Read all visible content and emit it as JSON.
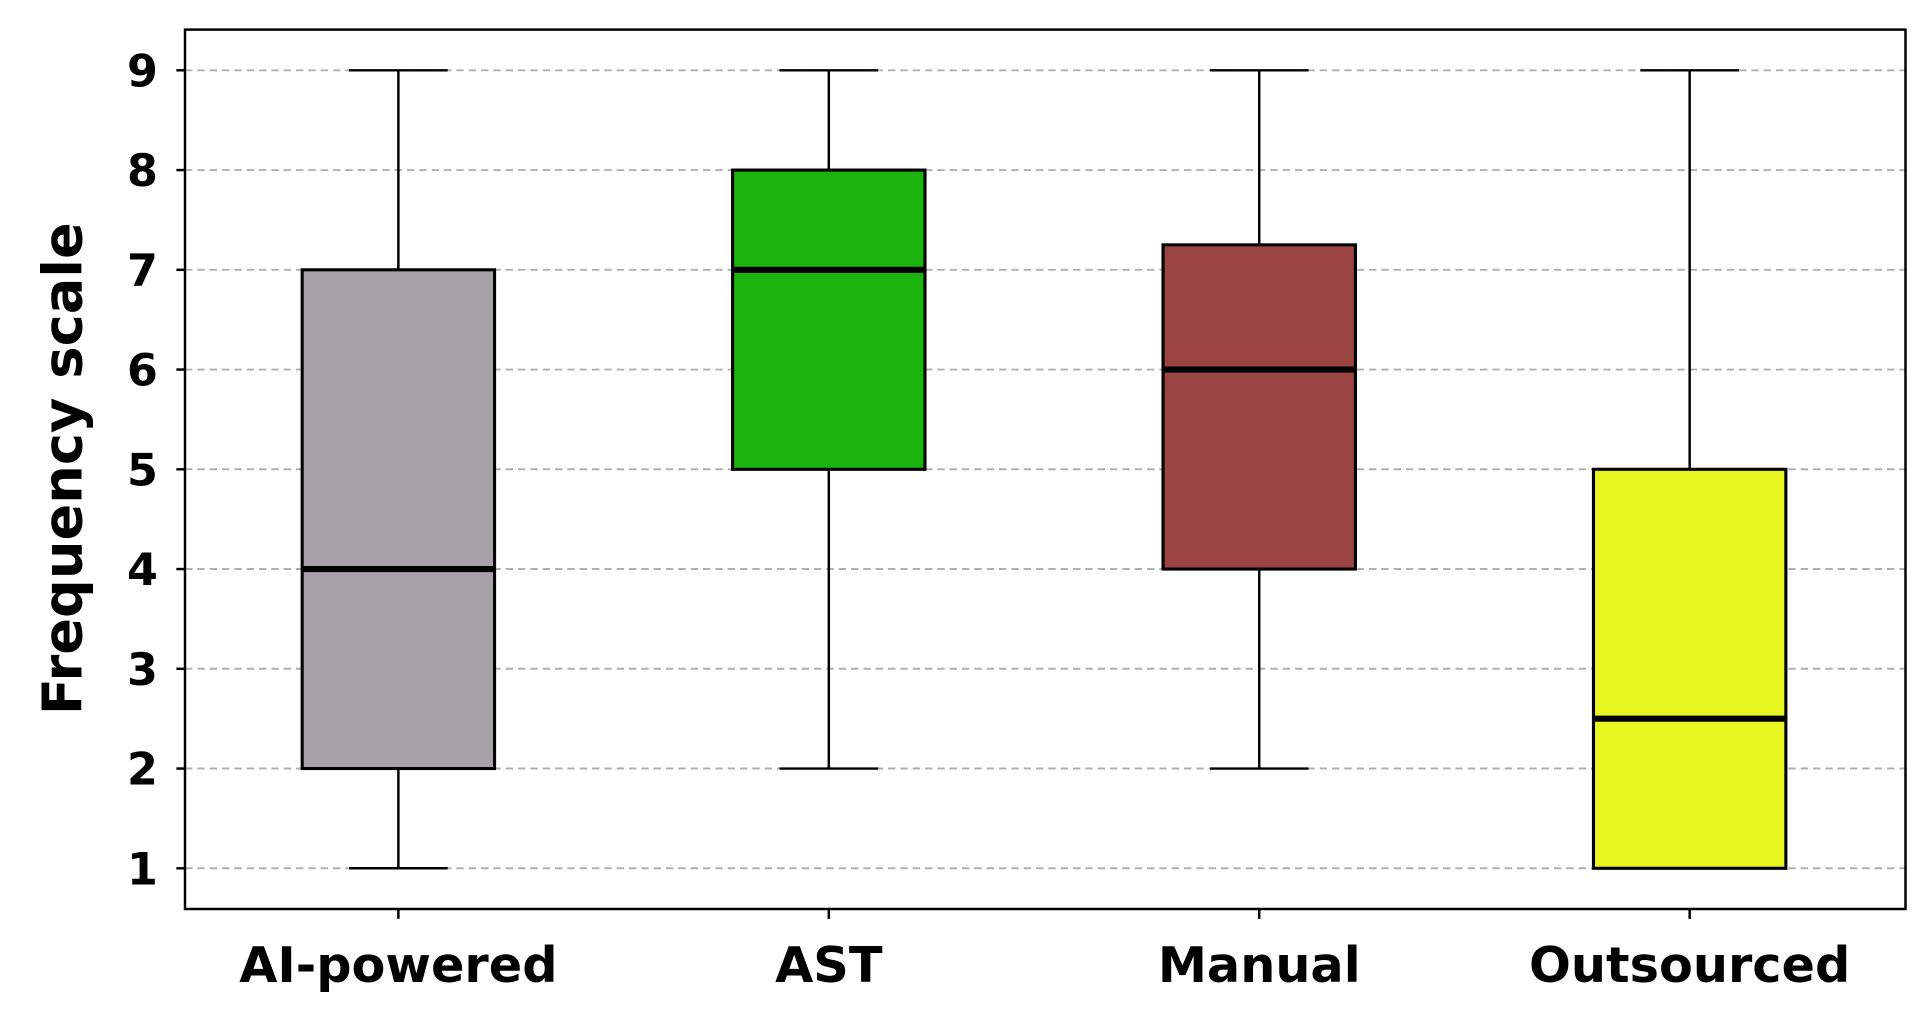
{
  "chart_data": {
    "type": "box",
    "title": "",
    "xlabel": "",
    "ylabel": "Frequency scale",
    "ylim": [
      0.6,
      9.4
    ],
    "yticks": [
      1,
      2,
      3,
      4,
      5,
      6,
      7,
      8,
      9
    ],
    "grid": "y-dashed",
    "categories": [
      "AI-powered",
      "AST",
      "Manual",
      "Outsourced"
    ],
    "boxes": [
      {
        "min": 1,
        "q1": 2,
        "median": 4,
        "q3": 7,
        "max": 9,
        "color": "#a7a2a8"
      },
      {
        "min": 2,
        "q1": 5,
        "median": 7,
        "q3": 8,
        "max": 9,
        "color": "#1bb40f"
      },
      {
        "min": 2,
        "q1": 4,
        "median": 6,
        "q3": 7.25,
        "max": 9,
        "color": "#9a4444"
      },
      {
        "min": 1,
        "q1": 1,
        "median": 2.5,
        "q3": 5,
        "max": 9,
        "color": "#e6f520"
      }
    ]
  }
}
